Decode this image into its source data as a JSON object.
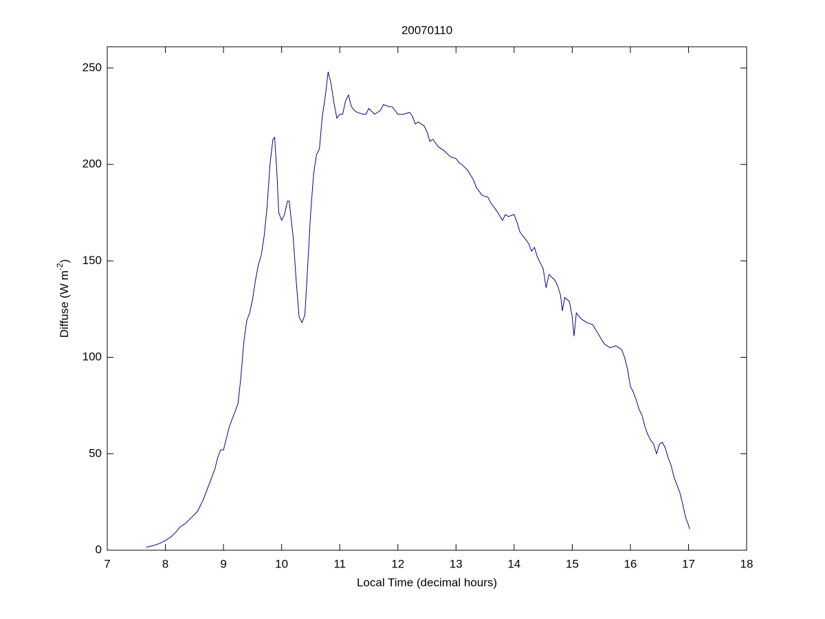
{
  "chart_data": {
    "type": "line",
    "title": "20070110",
    "xlabel": "Local Time (decimal hours)",
    "ylabel": [
      "Diffuse (W m",
      "-2",
      ")"
    ],
    "xlim": [
      7,
      18
    ],
    "xticks": [
      7,
      8,
      9,
      10,
      11,
      12,
      13,
      14,
      15,
      16,
      17,
      18
    ],
    "ylim": [
      0,
      261
    ],
    "yticks": [
      0,
      50,
      100,
      150,
      200,
      250
    ],
    "series": [
      {
        "color": "#00008b",
        "x": [
          7.67,
          7.8,
          7.9,
          8.0,
          8.1,
          8.2,
          8.25,
          8.35,
          8.45,
          8.55,
          8.65,
          8.75,
          8.85,
          8.9,
          8.95,
          9.0,
          9.05,
          9.1,
          9.2,
          9.25,
          9.3,
          9.35,
          9.4,
          9.45,
          9.5,
          9.55,
          9.6,
          9.65,
          9.7,
          9.75,
          9.8,
          9.85,
          9.88,
          9.92,
          9.95,
          10.0,
          10.05,
          10.1,
          10.13,
          10.2,
          10.25,
          10.3,
          10.35,
          10.4,
          10.45,
          10.5,
          10.55,
          10.6,
          10.65,
          10.7,
          10.75,
          10.8,
          10.85,
          10.9,
          10.95,
          11.0,
          11.05,
          11.1,
          11.15,
          11.2,
          11.25,
          11.3,
          11.4,
          11.45,
          11.5,
          11.6,
          11.7,
          11.75,
          11.85,
          11.9,
          12.0,
          12.1,
          12.2,
          12.25,
          12.3,
          12.35,
          12.45,
          12.5,
          12.55,
          12.6,
          12.7,
          12.8,
          12.9,
          13.0,
          13.05,
          13.1,
          13.2,
          13.3,
          13.35,
          13.45,
          13.55,
          13.6,
          13.7,
          13.8,
          13.85,
          13.9,
          14.0,
          14.05,
          14.1,
          14.2,
          14.25,
          14.3,
          14.35,
          14.4,
          14.5,
          14.55,
          14.6,
          14.7,
          14.75,
          14.8,
          14.83,
          14.87,
          14.95,
          15.0,
          15.03,
          15.07,
          15.15,
          15.25,
          15.35,
          15.45,
          15.55,
          15.65,
          15.75,
          15.85,
          15.9,
          15.95,
          16.0,
          16.05,
          16.1,
          16.15,
          16.2,
          16.25,
          16.3,
          16.35,
          16.4,
          16.45,
          16.5,
          16.55,
          16.6,
          16.65,
          16.7,
          16.75,
          16.8,
          16.85,
          16.9,
          16.95,
          17.0,
          17.02
        ],
        "values": [
          1.5,
          2.5,
          3.5,
          5,
          7,
          10,
          12,
          14,
          17,
          20,
          26,
          34,
          42,
          48,
          52,
          52,
          58,
          64,
          72,
          76,
          90,
          108,
          119,
          123,
          130,
          140,
          148,
          153,
          163,
          178,
          200,
          213,
          214,
          195,
          175,
          171,
          174,
          181,
          181,
          162,
          140,
          121,
          118,
          122,
          148,
          175,
          195,
          205,
          208,
          225,
          235,
          248,
          242,
          232,
          224,
          226,
          226,
          233,
          236,
          230,
          228,
          227,
          226,
          226,
          229,
          226,
          228,
          231,
          230,
          230,
          226,
          226,
          227,
          225,
          221,
          222,
          220,
          217,
          212,
          213,
          209,
          207,
          204,
          203,
          201,
          200,
          197,
          192,
          188,
          184,
          183,
          180,
          176,
          171,
          174,
          173,
          174,
          170,
          165,
          161,
          159,
          155,
          157,
          152,
          146,
          136,
          143,
          140,
          137,
          132,
          124,
          131,
          129,
          121,
          111,
          123,
          120,
          118,
          117,
          112,
          107,
          105,
          106,
          104,
          100,
          94,
          85,
          82,
          78,
          73,
          70,
          64,
          60,
          57,
          55,
          50,
          55,
          56,
          53,
          48,
          44,
          38,
          34,
          30,
          24,
          17,
          13,
          11
        ]
      }
    ]
  }
}
